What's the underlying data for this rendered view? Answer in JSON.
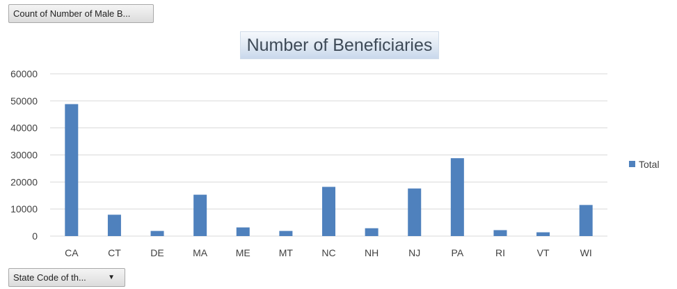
{
  "buttons": {
    "value_field": "Count of Number of Male B...",
    "axis_field": "State Code of th...",
    "dropdown_glyph": "▼"
  },
  "colors": {
    "bar": "#4f81bd",
    "grid": "#d9d9d9",
    "title_fill": "#dce6f2"
  },
  "chart_data": {
    "type": "bar",
    "title": "Number of Beneficiaries",
    "xlabel": "",
    "ylabel": "",
    "categories": [
      "CA",
      "CT",
      "DE",
      "MA",
      "ME",
      "MT",
      "NC",
      "NH",
      "NJ",
      "PA",
      "RI",
      "VT",
      "WI"
    ],
    "series": [
      {
        "name": "Total",
        "values": [
          48800,
          7900,
          1900,
          15300,
          3200,
          1900,
          18200,
          2900,
          17600,
          28800,
          2200,
          1400,
          11500
        ]
      }
    ],
    "ylim": [
      0,
      60000
    ],
    "yticks": [
      0,
      10000,
      20000,
      30000,
      40000,
      50000,
      60000
    ],
    "grid": true,
    "legend_position": "right"
  }
}
